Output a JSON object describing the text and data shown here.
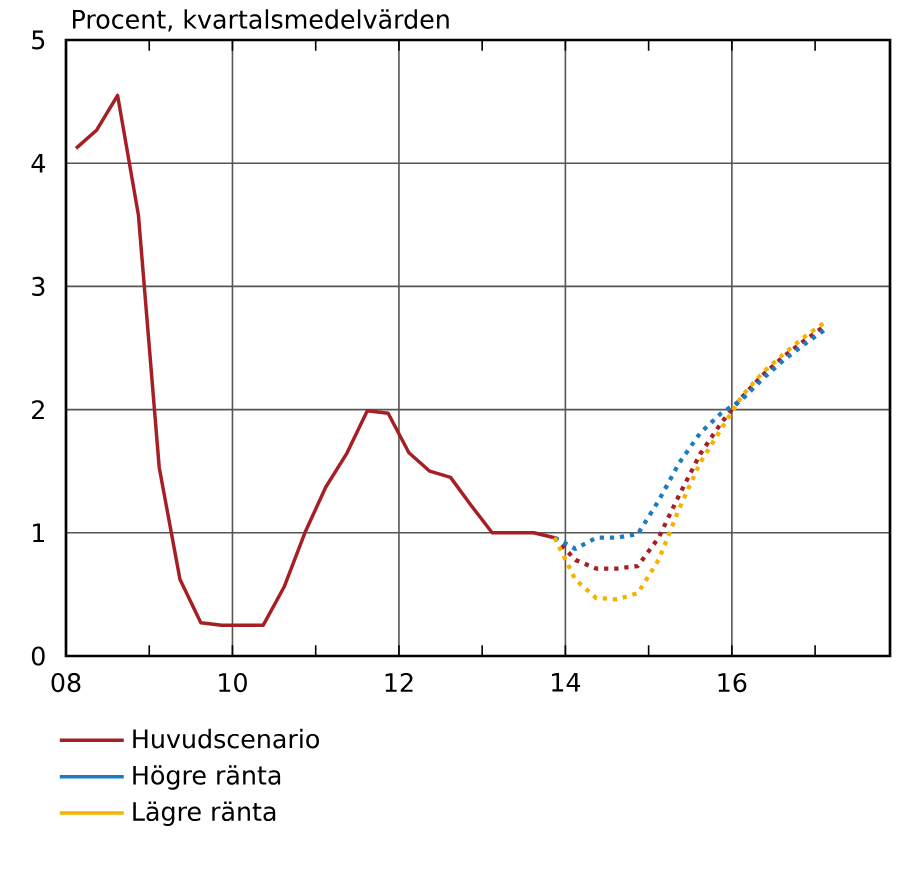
{
  "chart_data": {
    "type": "line",
    "title": "Procent, kvartalsmedelvärden",
    "xlim": [
      8,
      17.9
    ],
    "ylim": [
      0,
      5
    ],
    "xticks": [
      {
        "value": 8,
        "label": "08"
      },
      {
        "value": 9,
        "label": null
      },
      {
        "value": 10,
        "label": "10"
      },
      {
        "value": 11,
        "label": null
      },
      {
        "value": 12,
        "label": "12"
      },
      {
        "value": 13,
        "label": null
      },
      {
        "value": 14,
        "label": "14"
      },
      {
        "value": 15,
        "label": null
      },
      {
        "value": 16,
        "label": "16"
      },
      {
        "value": 17,
        "label": null
      }
    ],
    "yticks": [
      0,
      1,
      2,
      3,
      4,
      5
    ],
    "grid": true,
    "legend": "bottom",
    "series": [
      {
        "name": "Huvudscenario",
        "color": "#a51f24",
        "line_style": "solid",
        "x": [
          8.12,
          8.37,
          8.62,
          8.87,
          9.12,
          9.37,
          9.62,
          9.87,
          10.12,
          10.37,
          10.62,
          10.87,
          11.12,
          11.37,
          11.62,
          11.87,
          12.12,
          12.37,
          12.62,
          12.87,
          13.12,
          13.37,
          13.62,
          13.87
        ],
        "values": [
          4.12,
          4.27,
          4.55,
          3.58,
          1.53,
          0.62,
          0.27,
          0.25,
          0.25,
          0.25,
          0.56,
          1.0,
          1.37,
          1.64,
          1.99,
          1.97,
          1.65,
          1.5,
          1.45,
          1.22,
          1.0,
          1.0,
          1.0,
          0.96
        ]
      },
      {
        "color": "#a51f24",
        "line_style": "dotted",
        "x": [
          13.87,
          14.12,
          14.37,
          14.62,
          14.87,
          15.12,
          15.37,
          15.62,
          15.87,
          16.12,
          16.37,
          16.62,
          16.87,
          17.12
        ],
        "values": [
          0.96,
          0.78,
          0.71,
          0.71,
          0.73,
          0.96,
          1.31,
          1.64,
          1.89,
          2.1,
          2.28,
          2.43,
          2.56,
          2.68
        ]
      },
      {
        "name": "Högre ränta",
        "color": "#1a7dc2",
        "line_style": "dotted",
        "x": [
          13.87,
          14.12,
          14.37,
          14.62,
          14.87,
          15.12,
          15.37,
          15.62,
          15.87,
          16.12,
          16.37,
          16.62,
          16.87,
          17.12
        ],
        "values": [
          0.96,
          0.87,
          0.96,
          0.96,
          0.99,
          1.26,
          1.57,
          1.81,
          1.97,
          2.08,
          2.25,
          2.4,
          2.53,
          2.65
        ]
      },
      {
        "name": "Lägre ränta",
        "color": "#f5b300",
        "line_style": "dotted",
        "x": [
          13.87,
          14.12,
          14.37,
          14.62,
          14.87,
          15.12,
          15.37,
          15.62,
          15.87,
          16.12,
          16.37,
          16.62,
          16.87,
          17.12
        ],
        "values": [
          0.96,
          0.62,
          0.47,
          0.46,
          0.51,
          0.78,
          1.2,
          1.57,
          1.84,
          2.11,
          2.3,
          2.45,
          2.59,
          2.71
        ]
      }
    ]
  }
}
